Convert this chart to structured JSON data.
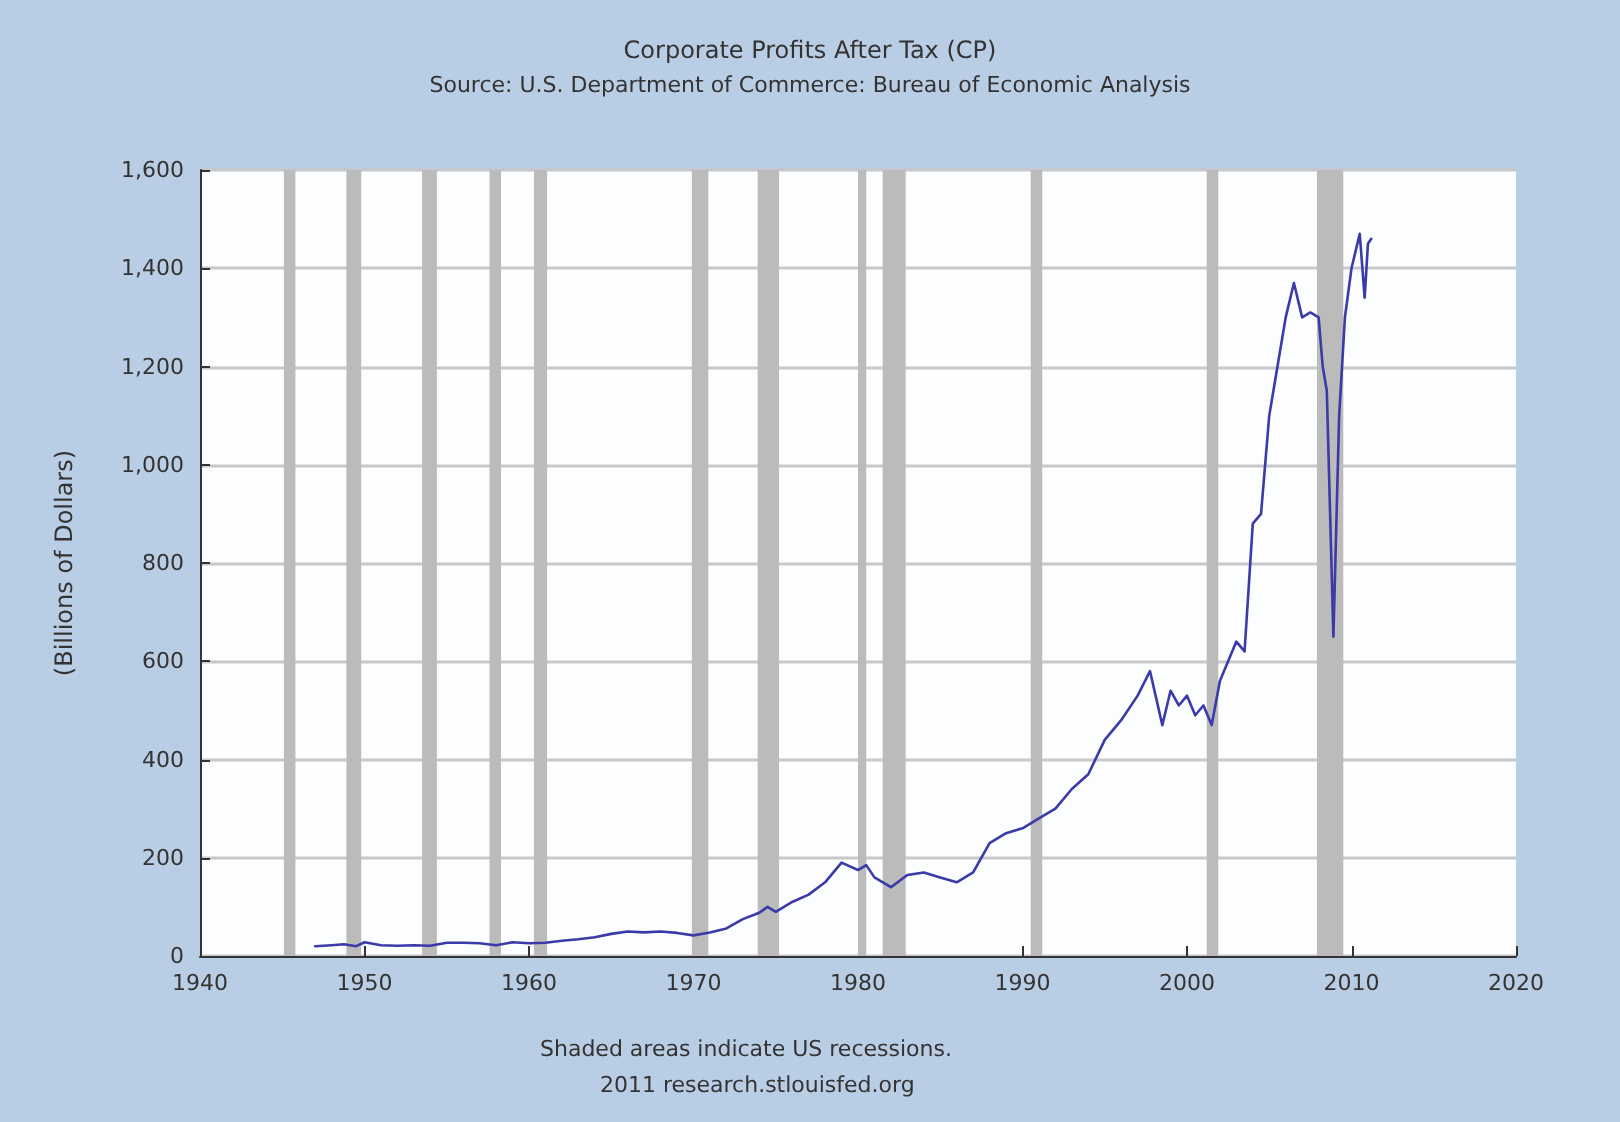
{
  "chart_data": {
    "type": "line",
    "title": "Corporate Profits After Tax (CP)",
    "subtitle": "Source: U.S. Department of Commerce: Bureau of Economic Analysis",
    "ylabel": "(Billions of Dollars)",
    "annotations": [
      "Shaded areas indicate US recessions.",
      "2011 research.stlouisfed.org"
    ],
    "series": [
      {
        "color": "#3a3aa8",
        "x": [
          1947,
          1948,
          1948.75,
          1949.5,
          1950,
          1950.5,
          1951,
          1952,
          1953,
          1954,
          1955,
          1956,
          1957,
          1958,
          1959,
          1960,
          1961,
          1962,
          1963,
          1964,
          1965,
          1966,
          1967,
          1968,
          1969,
          1970,
          1971,
          1972,
          1973,
          1974,
          1974.5,
          1975,
          1976,
          1977,
          1978,
          1979,
          1980,
          1980.5,
          1981,
          1982,
          1983,
          1984,
          1985,
          1986,
          1987,
          1988,
          1989,
          1990,
          1991,
          1992,
          1993,
          1994,
          1995,
          1996,
          1997,
          1997.75,
          1998.5,
          1999,
          1999.5,
          2000,
          2000.5,
          2001,
          2001.5,
          2002,
          2002.5,
          2003,
          2003.5,
          2004,
          2004.5,
          2005,
          2005.5,
          2006,
          2006.5,
          2007,
          2007.5,
          2008,
          2008.25,
          2008.5,
          2008.9,
          2009.25,
          2009.6,
          2010,
          2010.5,
          2010.8,
          2011,
          2011.2
        ],
        "values": [
          20,
          22,
          24,
          20,
          28,
          25,
          22,
          21,
          22,
          21,
          27,
          27,
          26,
          22,
          28,
          26,
          27,
          31,
          34,
          38,
          45,
          50,
          48,
          50,
          47,
          42,
          48,
          56,
          75,
          88,
          100,
          90,
          110,
          125,
          150,
          190,
          175,
          185,
          160,
          140,
          165,
          170,
          160,
          150,
          170,
          230,
          250,
          260,
          280,
          300,
          340,
          370,
          440,
          480,
          530,
          580,
          470,
          540,
          510,
          530,
          490,
          510,
          470,
          560,
          600,
          640,
          620,
          880,
          900,
          1100,
          1200,
          1300,
          1370,
          1300,
          1310,
          1300,
          1200,
          1150,
          650,
          1100,
          1300,
          1400,
          1470,
          1340,
          1450,
          1460
        ]
      }
    ],
    "xlim": [
      1940,
      2020
    ],
    "xticks": [
      1940,
      1950,
      1960,
      1970,
      1980,
      1990,
      2000,
      2010,
      2020
    ],
    "ylim": [
      0,
      1600
    ],
    "yticks": [
      0,
      200,
      400,
      600,
      800,
      {
        "value": 1000,
        "label": "1,000"
      },
      {
        "value": 1200,
        "label": "1,200"
      },
      {
        "value": 1400,
        "label": "1,400"
      },
      {
        "value": 1600,
        "label": "1,600"
      }
    ],
    "grid": "y",
    "marker": "none",
    "line_style": "solid",
    "bands": [
      {
        "axis": "x",
        "from": 1945.1,
        "to": 1945.8,
        "color": "#bbbbbb"
      },
      {
        "axis": "x",
        "from": 1948.9,
        "to": 1949.8,
        "color": "#bbbbbb"
      },
      {
        "axis": "x",
        "from": 1953.5,
        "to": 1954.4,
        "color": "#bbbbbb"
      },
      {
        "axis": "x",
        "from": 1957.6,
        "to": 1958.3,
        "color": "#bbbbbb"
      },
      {
        "axis": "x",
        "from": 1960.3,
        "to": 1961.1,
        "color": "#bbbbbb"
      },
      {
        "axis": "x",
        "from": 1969.9,
        "to": 1970.9,
        "color": "#bbbbbb"
      },
      {
        "axis": "x",
        "from": 1973.9,
        "to": 1975.2,
        "color": "#bbbbbb"
      },
      {
        "axis": "x",
        "from": 1980.0,
        "to": 1980.5,
        "color": "#bbbbbb"
      },
      {
        "axis": "x",
        "from": 1981.5,
        "to": 1982.9,
        "color": "#bbbbbb"
      },
      {
        "axis": "x",
        "from": 1990.5,
        "to": 1991.2,
        "color": "#bbbbbb"
      },
      {
        "axis": "x",
        "from": 2001.2,
        "to": 2001.9,
        "color": "#bbbbbb"
      },
      {
        "axis": "x",
        "from": 2007.9,
        "to": 2009.5,
        "color": "#bbbbbb"
      }
    ]
  }
}
